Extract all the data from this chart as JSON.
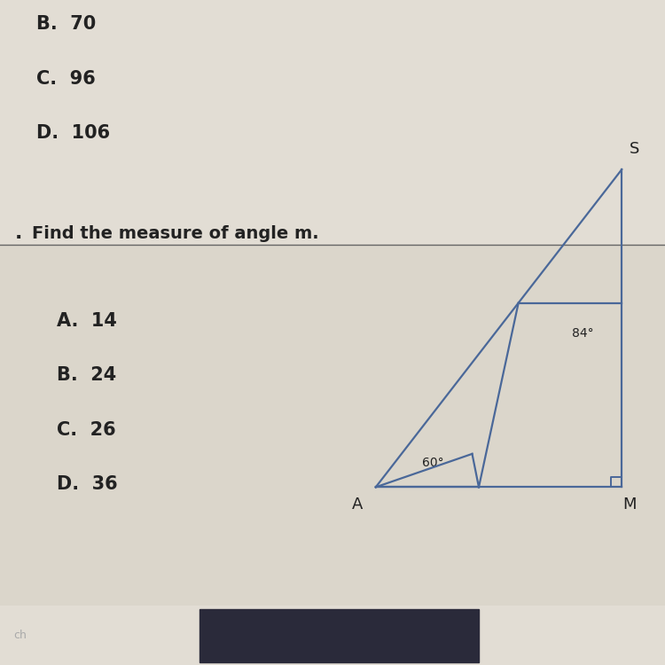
{
  "bg_color_top": "#e2ddd4",
  "bg_color_bottom": "#dbd6cb",
  "divider_color": "#666666",
  "triangle_color": "#4a6899",
  "text_color": "#222222",
  "question_text": "Find the measure of angle m.",
  "choices_bottom": [
    "A.  14",
    "B.  24",
    "C.  26",
    "D.  36"
  ],
  "choices_top": [
    "C.  96",
    "D.  106"
  ],
  "partial_top": "B.  70",
  "angle_84": "84°",
  "angle_60": "60°",
  "label_S": "S",
  "label_A": "A",
  "label_M": "M",
  "S": [
    0.935,
    0.72
  ],
  "M": [
    0.935,
    0.195
  ],
  "A": [
    0.565,
    0.195
  ],
  "P": [
    0.72,
    0.195
  ],
  "taskbar_color": "#1e1e1e",
  "taskbar_mid_color": "#2a2a3a"
}
